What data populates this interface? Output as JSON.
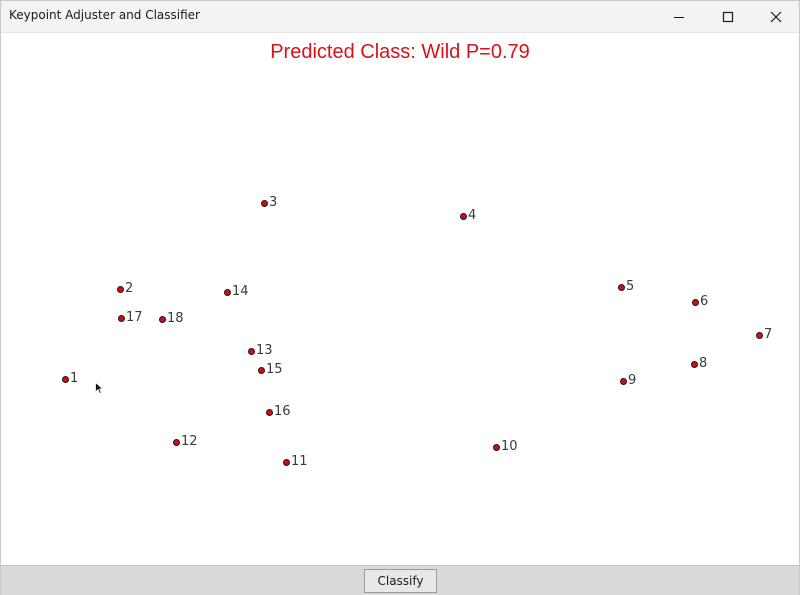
{
  "window": {
    "title": "Keypoint Adjuster and Classifier",
    "controls": [
      "minimize",
      "maximize",
      "close"
    ]
  },
  "prediction": {
    "text": "Predicted Class: Wild P=0.79",
    "color": "#d8121a"
  },
  "keypoints": [
    {
      "label": "1"
    },
    {
      "label": "2"
    },
    {
      "label": "3"
    },
    {
      "label": "4"
    },
    {
      "label": "5"
    },
    {
      "label": "6"
    },
    {
      "label": "7"
    },
    {
      "label": "8"
    },
    {
      "label": "9"
    },
    {
      "label": "10"
    },
    {
      "label": "11"
    },
    {
      "label": "12"
    },
    {
      "label": "13"
    },
    {
      "label": "14"
    },
    {
      "label": "15"
    },
    {
      "label": "16"
    },
    {
      "label": "17"
    },
    {
      "label": "18"
    }
  ],
  "toolbar": {
    "classify_label": "Classify"
  },
  "colors": {
    "keypoint_fill": "#d40a10",
    "keypoint_outline": "#1a1a1a"
  }
}
